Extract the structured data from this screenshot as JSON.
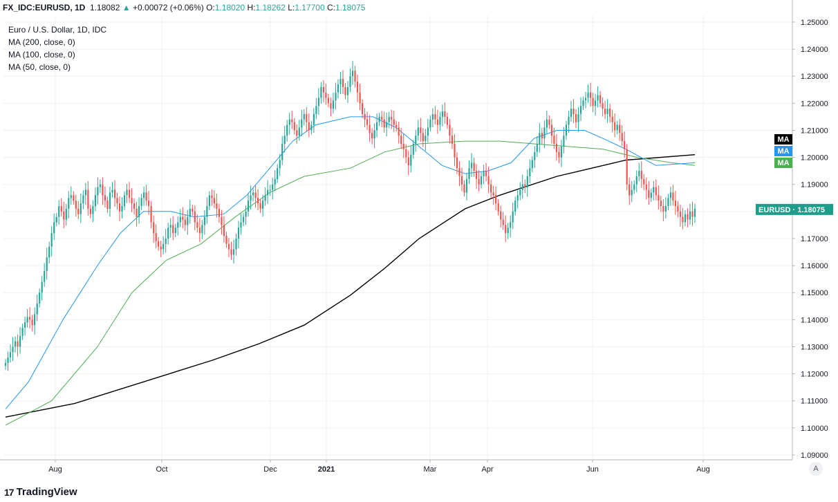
{
  "header": {
    "symbol": "FX_IDC:EURUSD, 1D",
    "last": "1.18082",
    "arrow": "▲",
    "change": "+0.00072 (+0.06%)",
    "open_label": "O:",
    "open": "1.18020",
    "high_label": "H:",
    "high": "1.18262",
    "low_label": "L:",
    "low": "1.17700",
    "close_label": "C:",
    "close": "1.18075"
  },
  "legend": {
    "title": "Euro / U.S. Dollar, 1D, IDC",
    "ma200": "MA (200, close, 0)",
    "ma100": "MA (100, close, 0)",
    "ma50": "MA (50, close, 0)"
  },
  "branding": {
    "logo_mark": "17",
    "logo_text": "TradingView"
  },
  "auto_label": "A",
  "colors": {
    "up": "#26a69a",
    "down": "#ef5350",
    "ma200": "#000000",
    "ma100": "#4caf50",
    "ma50": "#2196f3",
    "price_tag": "#1f9d8b"
  },
  "chart_data": {
    "type": "candlestick",
    "title": "Euro / U.S. Dollar, 1D, IDC",
    "ylim": [
      1.09,
      1.25
    ],
    "y_ticks": [
      "1.25000",
      "1.24000",
      "1.23000",
      "1.22000",
      "1.21000",
      "1.20000",
      "1.19000",
      "1.18000",
      "1.17000",
      "1.16000",
      "1.15000",
      "1.14000",
      "1.13000",
      "1.12000",
      "1.11000",
      "1.10000",
      "1.09000"
    ],
    "x_ticks": [
      "Aug",
      "Oct",
      "Dec",
      "2021",
      "Mar",
      "Apr",
      "Jun",
      "Aug"
    ],
    "price_closes": [
      1.124,
      1.126,
      1.128,
      1.13,
      1.132,
      1.13,
      1.134,
      1.137,
      1.139,
      1.141,
      1.14,
      1.138,
      1.142,
      1.146,
      1.15,
      1.154,
      1.158,
      1.163,
      1.167,
      1.172,
      1.176,
      1.178,
      1.182,
      1.18,
      1.177,
      1.181,
      1.185,
      1.186,
      1.184,
      1.181,
      1.179,
      1.183,
      1.186,
      1.188,
      1.181,
      1.179,
      1.182,
      1.186,
      1.189,
      1.19,
      1.186,
      1.184,
      1.181,
      1.187,
      1.188,
      1.185,
      1.183,
      1.18,
      1.182,
      1.186,
      1.188,
      1.185,
      1.183,
      1.181,
      1.178,
      1.182,
      1.185,
      1.187,
      1.184,
      1.182,
      1.176,
      1.172,
      1.169,
      1.167,
      1.166,
      1.168,
      1.17,
      1.174,
      1.175,
      1.172,
      1.174,
      1.176,
      1.178,
      1.177,
      1.175,
      1.178,
      1.181,
      1.18,
      1.176,
      1.174,
      1.172,
      1.175,
      1.178,
      1.182,
      1.186,
      1.185,
      1.183,
      1.181,
      1.178,
      1.175,
      1.171,
      1.168,
      1.166,
      1.164,
      1.166,
      1.17,
      1.174,
      1.176,
      1.178,
      1.18,
      1.184,
      1.186,
      1.187,
      1.185,
      1.183,
      1.181,
      1.184,
      1.186,
      1.188,
      1.188,
      1.19,
      1.192,
      1.196,
      1.199,
      1.205,
      1.208,
      1.212,
      1.214,
      1.213,
      1.21,
      1.208,
      1.211,
      1.214,
      1.216,
      1.213,
      1.21,
      1.212,
      1.216,
      1.219,
      1.222,
      1.226,
      1.224,
      1.222,
      1.22,
      1.218,
      1.221,
      1.224,
      1.227,
      1.229,
      1.226,
      1.223,
      1.226,
      1.23,
      1.232,
      1.228,
      1.224,
      1.22,
      1.216,
      1.214,
      1.212,
      1.209,
      1.207,
      1.21,
      1.213,
      1.215,
      1.214,
      1.211,
      1.213,
      1.215,
      1.214,
      1.212,
      1.211,
      1.208,
      1.205,
      1.203,
      1.2,
      1.197,
      1.201,
      1.205,
      1.208,
      1.211,
      1.209,
      1.206,
      1.208,
      1.211,
      1.214,
      1.216,
      1.214,
      1.212,
      1.215,
      1.217,
      1.215,
      1.212,
      1.208,
      1.205,
      1.2,
      1.196,
      1.193,
      1.19,
      1.187,
      1.192,
      1.196,
      1.198,
      1.195,
      1.192,
      1.19,
      1.193,
      1.195,
      1.193,
      1.19,
      1.187,
      1.186,
      1.183,
      1.18,
      1.177,
      1.175,
      1.172,
      1.174,
      1.176,
      1.18,
      1.184,
      1.186,
      1.188,
      1.19,
      1.189,
      1.193,
      1.196,
      1.199,
      1.202,
      1.205,
      1.209,
      1.207,
      1.211,
      1.214,
      1.212,
      1.208,
      1.205,
      1.202,
      1.2,
      1.204,
      1.208,
      1.212,
      1.215,
      1.218,
      1.216,
      1.213,
      1.216,
      1.219,
      1.221,
      1.222,
      1.224,
      1.222,
      1.219,
      1.221,
      1.223,
      1.22,
      1.218,
      1.216,
      1.218,
      1.215,
      1.213,
      1.21,
      1.212,
      1.209,
      1.206,
      1.203,
      1.19,
      1.186,
      1.188,
      1.19,
      1.193,
      1.195,
      1.192,
      1.19,
      1.188,
      1.185,
      1.187,
      1.189,
      1.186,
      1.184,
      1.182,
      1.18,
      1.182,
      1.185,
      1.187,
      1.184,
      1.182,
      1.18,
      1.178,
      1.176,
      1.179,
      1.177,
      1.18,
      1.178,
      1.181
    ],
    "ma200": [
      [
        0,
        1.104
      ],
      [
        30,
        1.109
      ],
      [
        60,
        1.117
      ],
      [
        90,
        1.125
      ],
      [
        110,
        1.131
      ],
      [
        130,
        1.138
      ],
      [
        150,
        1.149
      ],
      [
        165,
        1.159
      ],
      [
        180,
        1.17
      ],
      [
        200,
        1.181
      ],
      [
        215,
        1.186
      ],
      [
        240,
        1.193
      ],
      [
        270,
        1.199
      ],
      [
        300,
        1.201
      ]
    ],
    "ma100": [
      [
        0,
        1.101
      ],
      [
        20,
        1.11
      ],
      [
        40,
        1.13
      ],
      [
        55,
        1.15
      ],
      [
        70,
        1.162
      ],
      [
        85,
        1.168
      ],
      [
        100,
        1.178
      ],
      [
        115,
        1.187
      ],
      [
        130,
        1.193
      ],
      [
        150,
        1.196
      ],
      [
        165,
        1.202
      ],
      [
        180,
        1.205
      ],
      [
        200,
        1.206
      ],
      [
        215,
        1.206
      ],
      [
        230,
        1.205
      ],
      [
        245,
        1.204
      ],
      [
        260,
        1.203
      ],
      [
        275,
        1.2
      ],
      [
        290,
        1.198
      ],
      [
        300,
        1.197
      ]
    ],
    "ma50": [
      [
        0,
        1.107
      ],
      [
        10,
        1.117
      ],
      [
        25,
        1.14
      ],
      [
        40,
        1.16
      ],
      [
        50,
        1.172
      ],
      [
        60,
        1.18
      ],
      [
        72,
        1.18
      ],
      [
        82,
        1.178
      ],
      [
        95,
        1.179
      ],
      [
        105,
        1.186
      ],
      [
        115,
        1.196
      ],
      [
        125,
        1.206
      ],
      [
        135,
        1.212
      ],
      [
        150,
        1.215
      ],
      [
        160,
        1.215
      ],
      [
        170,
        1.211
      ],
      [
        180,
        1.204
      ],
      [
        190,
        1.197
      ],
      [
        200,
        1.194
      ],
      [
        210,
        1.195
      ],
      [
        220,
        1.198
      ],
      [
        230,
        1.207
      ],
      [
        240,
        1.21
      ],
      [
        252,
        1.21
      ],
      [
        260,
        1.207
      ],
      [
        270,
        1.203
      ],
      [
        283,
        1.197
      ],
      [
        300,
        1.198
      ]
    ],
    "ma_tags": [
      "MA",
      "MA",
      "MA"
    ],
    "price_tag": {
      "label": "EURUSD",
      "value": "1.18075"
    }
  }
}
